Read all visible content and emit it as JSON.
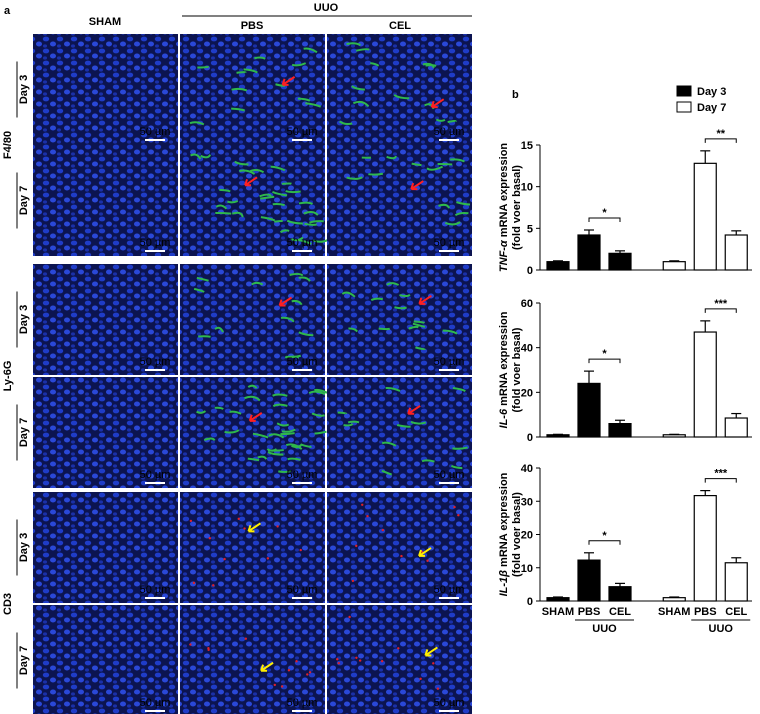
{
  "panel_a": {
    "label": "a",
    "group": "UUO",
    "columns": [
      "SHAM",
      "PBS",
      "CEL"
    ],
    "markers": [
      {
        "name": "F4/80",
        "color": "#2fb84c"
      },
      {
        "name": "Ly-6G",
        "color": "#2fb84c"
      },
      {
        "name": "CD3",
        "color": "#e0202a"
      }
    ],
    "days": [
      "Day 3",
      "Day 7"
    ],
    "scale_bar": "50 µm"
  },
  "panel_b": {
    "label": "b"
  },
  "chart_data": [
    {
      "type": "bar",
      "ylabel": [
        "TNF-α",
        " mRNA expression",
        "(fold voer basal)"
      ],
      "series": [
        {
          "name": "Day 3",
          "color": "#000000",
          "values": [
            1.0,
            4.2,
            2.0,
            null,
            null,
            null
          ],
          "errors": [
            0.1,
            0.6,
            0.3,
            null,
            null,
            null
          ]
        },
        {
          "name": "Day 7",
          "color": "#ffffff",
          "values": [
            null,
            null,
            null,
            1.0,
            12.8,
            4.2
          ],
          "errors": [
            null,
            null,
            null,
            0.1,
            1.5,
            0.5
          ]
        }
      ],
      "ylim": [
        0,
        15
      ],
      "yticks": [
        0,
        5,
        10,
        15
      ],
      "legend": "top-right",
      "annotations": [
        {
          "text": "*",
          "between": [
            1,
            2
          ]
        },
        {
          "text": "**",
          "between": [
            4,
            5
          ]
        }
      ]
    },
    {
      "type": "bar",
      "ylabel": [
        "IL-6",
        " mRNA expression",
        "(fold voer basal)"
      ],
      "series": [
        {
          "name": "Day 3",
          "color": "#000000",
          "values": [
            1,
            24,
            6,
            null,
            null,
            null
          ],
          "errors": [
            0.2,
            5.5,
            1.5,
            null,
            null,
            null
          ]
        },
        {
          "name": "Day 7",
          "color": "#ffffff",
          "values": [
            null,
            null,
            null,
            1,
            47,
            8.5
          ],
          "errors": [
            null,
            null,
            null,
            0.2,
            5,
            2
          ]
        }
      ],
      "ylim": [
        0,
        60
      ],
      "yticks": [
        0,
        20,
        40,
        60
      ],
      "annotations": [
        {
          "text": "*",
          "between": [
            1,
            2
          ]
        },
        {
          "text": "***",
          "between": [
            4,
            5
          ]
        }
      ]
    },
    {
      "type": "bar",
      "ylabel": [
        "IL-1β",
        " mRNA expression",
        "(fold voer basal)"
      ],
      "categories": [
        "SHAM",
        "PBS",
        "CEL",
        "SHAM",
        "PBS",
        "CEL"
      ],
      "group_label": "UUO",
      "series": [
        {
          "name": "Day 3",
          "color": "#000000",
          "values": [
            1,
            12.3,
            4.3,
            null,
            null,
            null
          ],
          "errors": [
            0.2,
            2.2,
            1.0,
            null,
            null,
            null
          ]
        },
        {
          "name": "Day 7",
          "color": "#ffffff",
          "values": [
            null,
            null,
            null,
            1,
            31.7,
            11.5
          ],
          "errors": [
            null,
            null,
            null,
            0.2,
            1.5,
            1.5
          ]
        }
      ],
      "ylim": [
        0,
        40
      ],
      "yticks": [
        0,
        10,
        20,
        30,
        40
      ],
      "annotations": [
        {
          "text": "*",
          "between": [
            1,
            2
          ]
        },
        {
          "text": "***",
          "between": [
            4,
            5
          ]
        }
      ]
    }
  ]
}
